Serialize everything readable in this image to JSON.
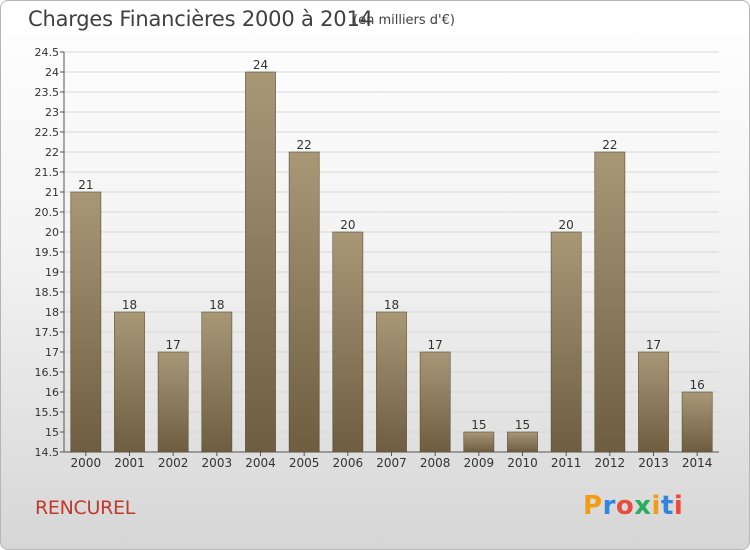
{
  "title": "Charges Financières 2000 à 2014",
  "subtitle": "(en milliers d'€)",
  "commune": "RENCUREL",
  "brand": {
    "letters": [
      "P",
      "r",
      "o",
      "x",
      "i",
      "t",
      "i"
    ],
    "colors": [
      "#f39c12",
      "#2e86de",
      "#e74c3c",
      "#27ae60",
      "#f39c12",
      "#2e86de",
      "#e74c3c"
    ]
  },
  "colors": {
    "bar_top": "#a89878",
    "bar_bottom": "#6e5d40",
    "axis": "#555555",
    "grid": "#d8d8d8"
  },
  "chart_data": {
    "type": "bar",
    "title": "Charges Financières 2000 à 2014",
    "subtitle": "(en milliers d'€)",
    "categories": [
      "2000",
      "2001",
      "2002",
      "2003",
      "2004",
      "2005",
      "2006",
      "2007",
      "2008",
      "2009",
      "2010",
      "2011",
      "2012",
      "2013",
      "2014"
    ],
    "values": [
      21,
      18,
      17,
      18,
      24,
      22,
      20,
      18,
      17,
      15,
      15,
      20,
      22,
      17,
      16
    ],
    "ylim": [
      14.5,
      24.5
    ],
    "yticks": [
      "14.5",
      "15",
      "15.5",
      "16",
      "16.5",
      "17",
      "17.5",
      "18",
      "18.5",
      "19",
      "19.5",
      "20",
      "20.5",
      "21",
      "21.5",
      "22",
      "22.5",
      "23",
      "23.5",
      "24",
      "24.5"
    ],
    "grid": true
  }
}
